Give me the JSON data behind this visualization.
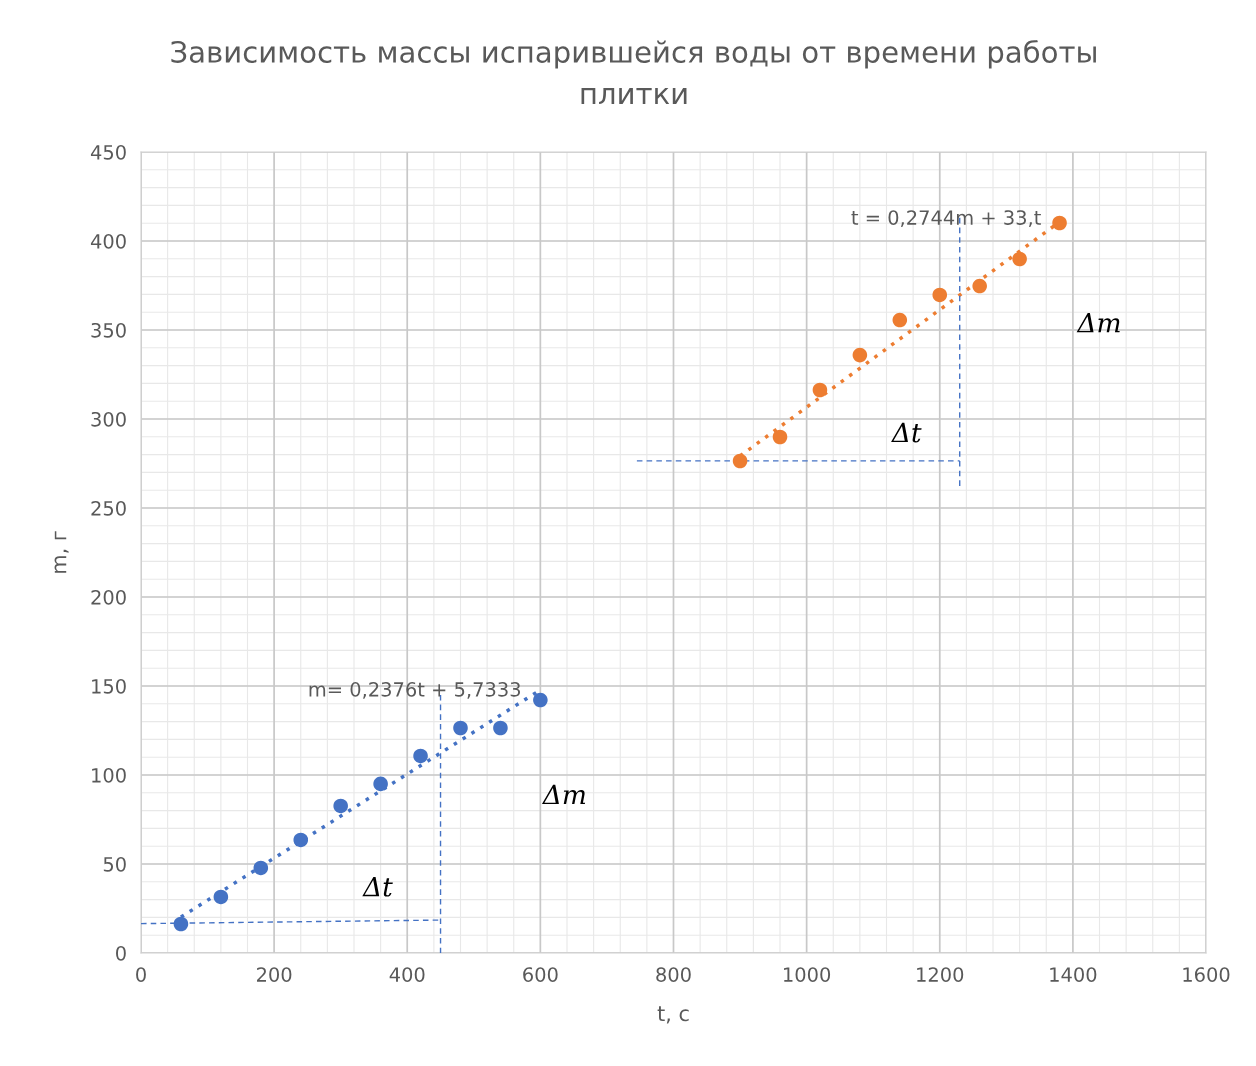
{
  "chart_data": {
    "type": "scatter",
    "title": "Зависимость массы испарившейся воды от времени работы\nплитки",
    "xlabel": "t, с",
    "ylabel": "m, г",
    "xlim": [
      0,
      1600
    ],
    "xticks": [
      0,
      200,
      400,
      600,
      800,
      1000,
      1200,
      1400,
      1600
    ],
    "ylim": [
      0,
      450
    ],
    "yticks": [
      0,
      50,
      100,
      150,
      200,
      250,
      300,
      350,
      400,
      450
    ],
    "grid": true,
    "legend": false,
    "series": [
      {
        "marker": "circle",
        "color": "#4472c4",
        "x": [
          60,
          120,
          180,
          240,
          300,
          360,
          420,
          480,
          540,
          600
        ],
        "values": [
          16.3,
          31.5,
          47.8,
          63.5,
          82.6,
          95,
          110.7,
          126.4,
          126.4,
          142.1
        ]
      },
      {
        "marker": "circle",
        "color": "#ed7d31",
        "x": [
          900,
          960,
          1020,
          1080,
          1140,
          1200,
          1260,
          1320,
          1380
        ],
        "values": [
          276.4,
          289.9,
          316.3,
          335.9,
          355.6,
          369.7,
          374.7,
          389.9,
          410.1
        ]
      },
      {
        "type": "line",
        "line_style": "dotted",
        "color": "#4472c4",
        "x": [
          60,
          600
        ],
        "values": [
          20.2,
          147.8
        ]
      },
      {
        "type": "line",
        "line_style": "dotted",
        "color": "#ed7d31",
        "x": [
          900,
          1380
        ],
        "values": [
          279.2,
          410.7
        ]
      },
      {
        "type": "line",
        "line_style": "dashed",
        "color": "#4472c4",
        "x": [
          0,
          450
        ],
        "values": [
          16.5,
          18.5
        ]
      },
      {
        "type": "line",
        "line_style": "dashed",
        "color": "#4472c4",
        "x": [
          450,
          450
        ],
        "values": [
          145,
          0
        ]
      },
      {
        "type": "line",
        "line_style": "dashed",
        "color": "#4472c4",
        "x": [
          745,
          1230
        ],
        "values": [
          276.5,
          276.5
        ]
      },
      {
        "type": "line",
        "line_style": "dashed",
        "color": "#4472c4",
        "x": [
          1230,
          1230
        ],
        "values": [
          413,
          262
        ]
      }
    ],
    "annotations": [
      "m= 0,2376t + 5,7333",
      "t = 0,2744m + 33,t",
      "Δt",
      "Δm",
      "Δt",
      "Δm"
    ]
  }
}
